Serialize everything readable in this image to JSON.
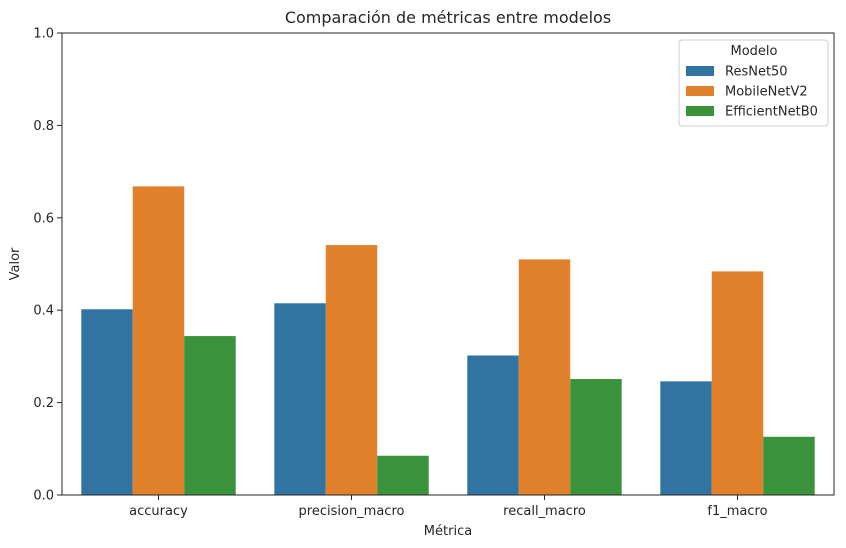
{
  "chart_data": {
    "type": "bar",
    "title": "Comparación de métricas entre modelos",
    "xlabel": "Métrica",
    "ylabel": "Valor",
    "categories": [
      "accuracy",
      "precision_macro",
      "recall_macro",
      "f1_macro"
    ],
    "ylim": [
      0,
      1
    ],
    "yticks": [
      "0.0",
      "0.2",
      "0.4",
      "0.6",
      "0.8",
      "1.0"
    ],
    "legend": {
      "title": "Modelo",
      "placement": "top-right"
    },
    "series": [
      {
        "name": "ResNet50",
        "color": "#3274a1",
        "values": [
          0.402,
          0.415,
          0.302,
          0.246
        ]
      },
      {
        "name": "MobileNetV2",
        "color": "#e1812c",
        "values": [
          0.668,
          0.541,
          0.51,
          0.484
        ]
      },
      {
        "name": "EfficientNetB0",
        "color": "#3a923a",
        "values": [
          0.344,
          0.085,
          0.251,
          0.126
        ]
      }
    ],
    "grid": false
  }
}
